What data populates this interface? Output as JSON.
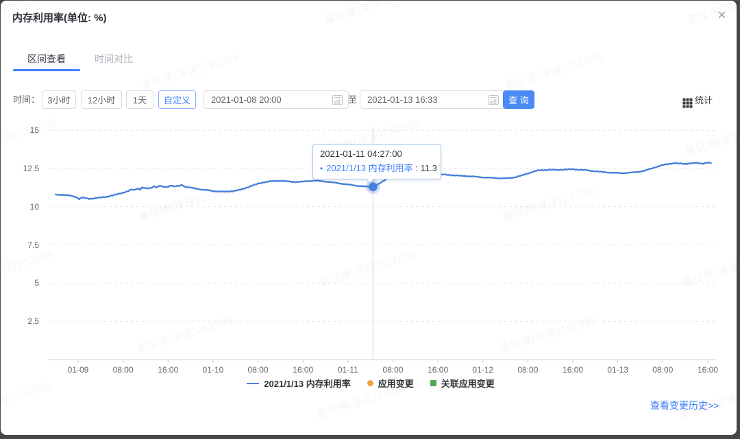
{
  "modal": {
    "title": "内存利用率(单位: %)",
    "close_icon": "×"
  },
  "tabs": [
    {
      "label": "区间查看",
      "active": true
    },
    {
      "label": "时间对比",
      "active": false
    }
  ],
  "filter": {
    "label": "时间：",
    "range_buttons": [
      {
        "label": "3小时",
        "selected": false
      },
      {
        "label": "12小时",
        "selected": false
      },
      {
        "label": "1天",
        "selected": false
      },
      {
        "label": "自定义",
        "selected": true
      }
    ],
    "start_value": "2021-01-08 20:00",
    "to_label": "至",
    "end_value": "2021-01-13 16:33",
    "query_label": "查 询",
    "stats_label": "统计"
  },
  "tooltip": {
    "time": "2021-01-11 04:27:00",
    "bullet": "•",
    "series": "2021/1/13 内存利用率",
    "separator": " : ",
    "value": "11.3"
  },
  "legend": [
    {
      "label": "2021/1/13 内存利用率",
      "type": "line",
      "color": "#4680d9"
    },
    {
      "label": "应用变更",
      "type": "dot",
      "color": "#eda338"
    },
    {
      "label": "关联应用变更",
      "type": "square",
      "color": "#55a855"
    }
  ],
  "footer": {
    "history_link": "查看变更历史>>"
  },
  "watermark": {
    "text": "童仪博(淳深)252605"
  },
  "colors": {
    "accent": "#3e7eff",
    "line": "#4680d9",
    "query_button": "#4a8af5",
    "tooltip_border": "#9dc2f7",
    "grid": "#e4e7ed",
    "axis": "#cdd0d6"
  },
  "chart_data": {
    "type": "line",
    "title": "内存利用率(单位: %)",
    "series_name": "2021/1/13 内存利用率",
    "unit": "%",
    "ylim": [
      0,
      15
    ],
    "y_ticks": [
      2.5,
      5,
      7.5,
      10,
      12.5,
      15
    ],
    "grid": "dashed-horizontal",
    "legend_position": "bottom",
    "x_start": "2021-01-08 20:00",
    "x_end": "2021-01-13 16:33",
    "x_tick_labels": [
      "01-09",
      "08:00",
      "16:00",
      "01-10",
      "08:00",
      "16:00",
      "01-11",
      "08:00",
      "16:00",
      "01-12",
      "08:00",
      "16:00",
      "01-13",
      "08:00",
      "16:00"
    ],
    "x_tick_hours": [
      4,
      12,
      20,
      28,
      36,
      44,
      52,
      60,
      68,
      76,
      84,
      92,
      100,
      108,
      116
    ],
    "highlight_point": {
      "time": "2021-01-11 04:27:00",
      "hours": 56.45,
      "value": 11.3
    },
    "points": [
      [
        0,
        10.8
      ],
      [
        1,
        10.78
      ],
      [
        2,
        10.75
      ],
      [
        3,
        10.7
      ],
      [
        3.8,
        10.62
      ],
      [
        4.2,
        10.48
      ],
      [
        4.6,
        10.6
      ],
      [
        5,
        10.58
      ],
      [
        6,
        10.52
      ],
      [
        7,
        10.55
      ],
      [
        8,
        10.6
      ],
      [
        9,
        10.65
      ],
      [
        10,
        10.72
      ],
      [
        11,
        10.82
      ],
      [
        12,
        10.92
      ],
      [
        13,
        11.02
      ],
      [
        13.5,
        11.15
      ],
      [
        14,
        11.08
      ],
      [
        14.5,
        11.22
      ],
      [
        15,
        11.12
      ],
      [
        15.5,
        11.28
      ],
      [
        16,
        11.18
      ],
      [
        17,
        11.22
      ],
      [
        17.5,
        11.35
      ],
      [
        18,
        11.25
      ],
      [
        18.7,
        11.4
      ],
      [
        19,
        11.28
      ],
      [
        20,
        11.3
      ],
      [
        20.5,
        11.42
      ],
      [
        21,
        11.32
      ],
      [
        22,
        11.35
      ],
      [
        22.5,
        11.45
      ],
      [
        23,
        11.3
      ],
      [
        24,
        11.25
      ],
      [
        25,
        11.18
      ],
      [
        26,
        11.12
      ],
      [
        27,
        11.08
      ],
      [
        28,
        11.02
      ],
      [
        29,
        11.0
      ],
      [
        30,
        10.98
      ],
      [
        31,
        11.0
      ],
      [
        32,
        11.05
      ],
      [
        33,
        11.12
      ],
      [
        34,
        11.25
      ],
      [
        35,
        11.38
      ],
      [
        36,
        11.5
      ],
      [
        37,
        11.6
      ],
      [
        38,
        11.65
      ],
      [
        39,
        11.68
      ],
      [
        40,
        11.7
      ],
      [
        41,
        11.66
      ],
      [
        42,
        11.63
      ],
      [
        43,
        11.62
      ],
      [
        44,
        11.64
      ],
      [
        45,
        11.68
      ],
      [
        46,
        11.7
      ],
      [
        47,
        11.68
      ],
      [
        48,
        11.65
      ],
      [
        49,
        11.6
      ],
      [
        50,
        11.55
      ],
      [
        51,
        11.5
      ],
      [
        52,
        11.45
      ],
      [
        53,
        11.4
      ],
      [
        54,
        11.35
      ],
      [
        55,
        11.32
      ],
      [
        56,
        11.3
      ],
      [
        56.45,
        11.3
      ],
      [
        57,
        11.38
      ],
      [
        58,
        11.6
      ],
      [
        59,
        11.85
      ],
      [
        60,
        12.0
      ],
      [
        61,
        12.08
      ],
      [
        62,
        12.1
      ],
      [
        63,
        12.08
      ],
      [
        64,
        12.1
      ],
      [
        65,
        12.12
      ],
      [
        66,
        12.15
      ],
      [
        67,
        12.1
      ],
      [
        68,
        12.08
      ],
      [
        69,
        12.1
      ],
      [
        70,
        12.08
      ],
      [
        71,
        12.05
      ],
      [
        72,
        12.02
      ],
      [
        73,
        12.0
      ],
      [
        74,
        11.98
      ],
      [
        75,
        11.95
      ],
      [
        76,
        11.92
      ],
      [
        77,
        11.9
      ],
      [
        78,
        11.88
      ],
      [
        79,
        11.86
      ],
      [
        80,
        11.85
      ],
      [
        81,
        11.88
      ],
      [
        82,
        11.95
      ],
      [
        83,
        12.05
      ],
      [
        84,
        12.18
      ],
      [
        85,
        12.3
      ],
      [
        86,
        12.38
      ],
      [
        87,
        12.4
      ],
      [
        88,
        12.42
      ],
      [
        89,
        12.4
      ],
      [
        90,
        12.42
      ],
      [
        91,
        12.44
      ],
      [
        92,
        12.45
      ],
      [
        93,
        12.42
      ],
      [
        94,
        12.4
      ],
      [
        95,
        12.36
      ],
      [
        96,
        12.32
      ],
      [
        97,
        12.28
      ],
      [
        98,
        12.25
      ],
      [
        99,
        12.22
      ],
      [
        100,
        12.2
      ],
      [
        101,
        12.2
      ],
      [
        102,
        12.22
      ],
      [
        103,
        12.25
      ],
      [
        104,
        12.3
      ],
      [
        105,
        12.38
      ],
      [
        106,
        12.5
      ],
      [
        107,
        12.62
      ],
      [
        108,
        12.72
      ],
      [
        109,
        12.8
      ],
      [
        110,
        12.85
      ],
      [
        111,
        12.82
      ],
      [
        112,
        12.8
      ],
      [
        113,
        12.84
      ],
      [
        114,
        12.86
      ],
      [
        115,
        12.82
      ],
      [
        116,
        12.88
      ],
      [
        116.55,
        12.85
      ]
    ]
  }
}
